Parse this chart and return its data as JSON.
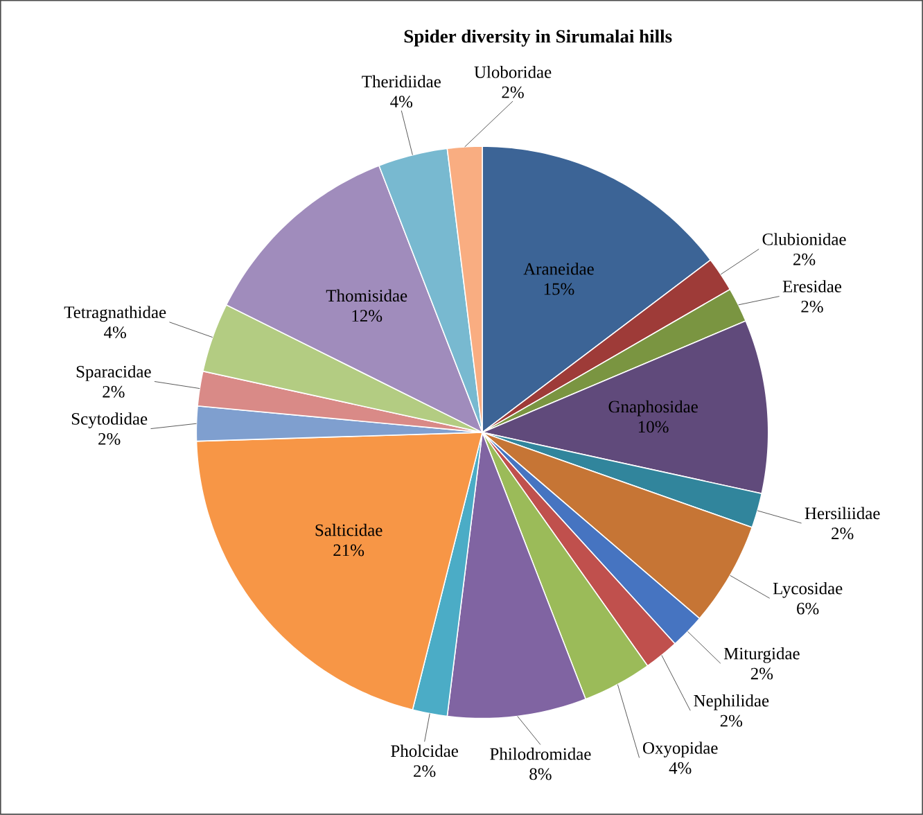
{
  "chart_data": {
    "type": "pie",
    "title": "Spider diversity in Sirumalai hills",
    "categories": [
      "Araneidae",
      "Clubionidae",
      "Eresidae",
      "Gnaphosidae",
      "Hersiliidae",
      "Lycosidae",
      "Miturgidae",
      "Nephilidae",
      "Oxyopidae",
      "Philodromidae",
      "Pholcidae",
      "Salticidae",
      "Scytodidae",
      "Sparacidae",
      "Tetragnathidae",
      "Thomisidae",
      "Theridiidae",
      "Uloboridae"
    ],
    "values": [
      15,
      2,
      2,
      10,
      2,
      6,
      2,
      2,
      4,
      8,
      2,
      21,
      2,
      2,
      4,
      12,
      4,
      2
    ],
    "value_labels": [
      "15%",
      "2%",
      "2%",
      "10%",
      "2%",
      "6%",
      "2%",
      "2%",
      "4%",
      "8%",
      "2%",
      "21%",
      "2%",
      "2%",
      "4%",
      "12%",
      "4%",
      "2%"
    ],
    "colors": [
      "#3c6496",
      "#9e3b38",
      "#7a9541",
      "#604a7b",
      "#31859c",
      "#c67535",
      "#4674c1",
      "#c0504d",
      "#9bbb59",
      "#8064a2",
      "#4bacc6",
      "#f79646",
      "#7f9fcf",
      "#d98a87",
      "#b3cc82",
      "#a08cbc",
      "#78b9d0",
      "#f9ad81"
    ]
  }
}
